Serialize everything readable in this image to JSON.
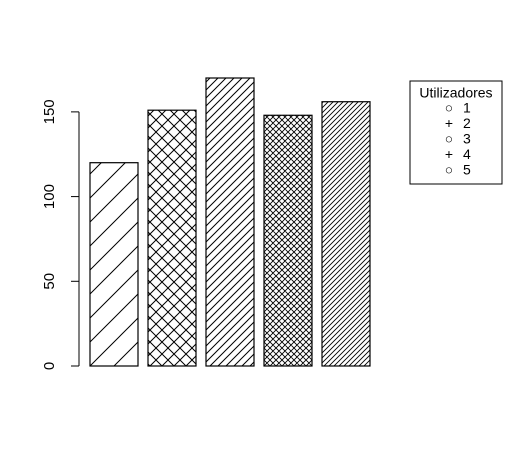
{
  "chart_data": {
    "type": "bar",
    "title": "",
    "xlabel": "",
    "ylabel": "",
    "categories": [
      "1",
      "2",
      "3",
      "4",
      "5"
    ],
    "values": [
      120,
      151,
      170,
      148,
      156
    ],
    "patterns": [
      "sparse-diagonal",
      "crosshatch-medium",
      "dense-diagonal",
      "crosshatch-dense",
      "very-dense-diagonal"
    ],
    "ylim": [
      0,
      170
    ],
    "yticks": [
      0,
      50,
      100,
      150
    ],
    "ytick_labels": [
      "0",
      "50",
      "100",
      "150"
    ],
    "grid": false,
    "legend": {
      "title": "Utilizadores",
      "placement": "top-right",
      "entries": [
        {
          "symbol": "○",
          "label": "1"
        },
        {
          "symbol": "+",
          "label": "2"
        },
        {
          "symbol": "○",
          "label": "3"
        },
        {
          "symbol": "+",
          "label": "4"
        },
        {
          "symbol": "○",
          "label": "5"
        }
      ]
    }
  }
}
